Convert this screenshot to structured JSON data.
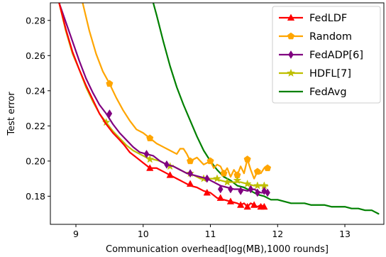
{
  "chart_data": {
    "type": "line",
    "title": "",
    "xlabel": "Communication overhead[log(MB),1000 rounds]",
    "ylabel": "Test error",
    "xlim": [
      8.62,
      13.58
    ],
    "ylim": [
      0.164,
      0.29
    ],
    "xticks": [
      9,
      10,
      11,
      12,
      13
    ],
    "yticks": [
      0.18,
      0.2,
      0.22,
      0.24,
      0.26,
      0.28
    ],
    "xtick_labels": [
      "9",
      "10",
      "11",
      "12",
      "13"
    ],
    "ytick_labels": [
      "0.18",
      "0.20",
      "0.22",
      "0.24",
      "0.26",
      "0.28"
    ],
    "grid": false,
    "legend_position": "top-right",
    "series": [
      {
        "name": "FedLDF",
        "color": "#ff0000",
        "marker": "triangle",
        "x": [
          8.75,
          8.85,
          8.95,
          9.05,
          9.15,
          9.25,
          9.35,
          9.45,
          9.55,
          9.65,
          9.72,
          9.8,
          9.9,
          10.0,
          10.1,
          10.2,
          10.3,
          10.4,
          10.5,
          10.6,
          10.7,
          10.8,
          10.9,
          11.0,
          11.1,
          11.2,
          11.3,
          11.4,
          11.45,
          11.5,
          11.55,
          11.6,
          11.65,
          11.7,
          11.75,
          11.8
        ],
        "y": [
          0.29,
          0.275,
          0.262,
          0.252,
          0.243,
          0.235,
          0.227,
          0.221,
          0.216,
          0.212,
          0.209,
          0.205,
          0.202,
          0.199,
          0.196,
          0.196,
          0.194,
          0.192,
          0.19,
          0.188,
          0.186,
          0.185,
          0.183,
          0.182,
          0.179,
          0.178,
          0.177,
          0.176,
          0.175,
          0.176,
          0.174,
          0.176,
          0.175,
          0.174,
          0.175,
          0.174
        ],
        "markers_x": [
          10.1,
          10.4,
          10.7,
          10.95,
          11.15,
          11.3,
          11.45,
          11.55,
          11.65,
          11.75,
          11.8
        ],
        "markers_y": [
          0.196,
          0.192,
          0.187,
          0.182,
          0.179,
          0.177,
          0.175,
          0.174,
          0.175,
          0.174,
          0.174
        ]
      },
      {
        "name": "Random",
        "color": "#ffa500",
        "marker": "pentagon",
        "x": [
          9.1,
          9.2,
          9.3,
          9.4,
          9.5,
          9.6,
          9.7,
          9.8,
          9.9,
          10.0,
          10.1,
          10.2,
          10.3,
          10.4,
          10.5,
          10.55,
          10.6,
          10.65,
          10.7,
          10.8,
          10.9,
          11.0,
          11.05,
          11.1,
          11.15,
          11.2,
          11.25,
          11.3,
          11.35,
          11.4,
          11.45,
          11.5,
          11.55,
          11.6,
          11.65,
          11.7,
          11.75,
          11.8,
          11.85
        ],
        "y": [
          0.29,
          0.274,
          0.261,
          0.251,
          0.244,
          0.236,
          0.229,
          0.223,
          0.218,
          0.216,
          0.213,
          0.21,
          0.208,
          0.206,
          0.204,
          0.207,
          0.207,
          0.204,
          0.2,
          0.202,
          0.198,
          0.2,
          0.196,
          0.198,
          0.197,
          0.193,
          0.196,
          0.191,
          0.195,
          0.192,
          0.197,
          0.193,
          0.201,
          0.195,
          0.19,
          0.194,
          0.193,
          0.196,
          0.196
        ],
        "markers_x": [
          9.5,
          10.1,
          10.7,
          11.0,
          11.2,
          11.4,
          11.55,
          11.7,
          11.85
        ],
        "markers_y": [
          0.244,
          0.213,
          0.2,
          0.2,
          0.193,
          0.192,
          0.201,
          0.194,
          0.196
        ]
      },
      {
        "name": "FedADP[6]",
        "color": "#800080",
        "marker": "diamond",
        "x": [
          8.75,
          8.85,
          8.95,
          9.05,
          9.15,
          9.25,
          9.35,
          9.45,
          9.55,
          9.65,
          9.75,
          9.85,
          9.95,
          10.05,
          10.15,
          10.25,
          10.35,
          10.45,
          10.55,
          10.65,
          10.75,
          10.85,
          10.95,
          11.05,
          11.15,
          11.25,
          11.35,
          11.45,
          11.55,
          11.65,
          11.75,
          11.85
        ],
        "y": [
          0.29,
          0.279,
          0.268,
          0.257,
          0.247,
          0.239,
          0.232,
          0.227,
          0.221,
          0.216,
          0.212,
          0.208,
          0.205,
          0.204,
          0.203,
          0.2,
          0.198,
          0.197,
          0.195,
          0.193,
          0.192,
          0.191,
          0.19,
          0.188,
          0.186,
          0.185,
          0.184,
          0.184,
          0.183,
          0.184,
          0.182,
          0.182
        ],
        "markers_x": [
          9.5,
          10.05,
          10.35,
          10.7,
          10.95,
          11.15,
          11.3,
          11.45,
          11.6,
          11.7,
          11.8,
          11.85
        ],
        "markers_y": [
          0.227,
          0.204,
          0.198,
          0.193,
          0.19,
          0.184,
          0.184,
          0.183,
          0.184,
          0.182,
          0.183,
          0.182
        ]
      },
      {
        "name": "HDFL[7]",
        "color": "#bfbf00",
        "marker": "star",
        "x": [
          8.75,
          8.85,
          8.95,
          9.05,
          9.15,
          9.25,
          9.35,
          9.45,
          9.55,
          9.65,
          9.75,
          9.85,
          9.95,
          10.05,
          10.15,
          10.25,
          10.35,
          10.45,
          10.55,
          10.65,
          10.75,
          10.85,
          10.95,
          11.05,
          11.15,
          11.25,
          11.35,
          11.45,
          11.55,
          11.65,
          11.75,
          11.85
        ],
        "y": [
          0.29,
          0.274,
          0.261,
          0.252,
          0.242,
          0.234,
          0.227,
          0.222,
          0.217,
          0.213,
          0.209,
          0.206,
          0.204,
          0.202,
          0.201,
          0.2,
          0.198,
          0.197,
          0.195,
          0.193,
          0.192,
          0.19,
          0.19,
          0.19,
          0.189,
          0.188,
          0.188,
          0.188,
          0.187,
          0.186,
          0.186,
          0.186
        ],
        "markers_x": [
          9.45,
          10.1,
          10.4,
          10.7,
          10.9,
          11.1,
          11.25,
          11.4,
          11.55,
          11.7,
          11.8
        ],
        "markers_y": [
          0.222,
          0.201,
          0.197,
          0.193,
          0.19,
          0.19,
          0.188,
          0.189,
          0.187,
          0.186,
          0.186
        ]
      },
      {
        "name": "FedAvg",
        "color": "#008000",
        "marker": "none",
        "x": [
          10.15,
          10.2,
          10.3,
          10.4,
          10.5,
          10.6,
          10.7,
          10.8,
          10.9,
          11.0,
          11.1,
          11.2,
          11.3,
          11.4,
          11.5,
          11.6,
          11.7,
          11.8,
          11.9,
          12.0,
          12.1,
          12.2,
          12.3,
          12.4,
          12.5,
          12.6,
          12.7,
          12.8,
          12.9,
          13.0,
          13.1,
          13.2,
          13.3,
          13.4,
          13.45,
          13.5
        ],
        "y": [
          0.29,
          0.283,
          0.268,
          0.254,
          0.242,
          0.232,
          0.223,
          0.214,
          0.206,
          0.2,
          0.195,
          0.191,
          0.189,
          0.186,
          0.185,
          0.183,
          0.181,
          0.18,
          0.178,
          0.178,
          0.177,
          0.176,
          0.176,
          0.176,
          0.175,
          0.175,
          0.175,
          0.174,
          0.174,
          0.174,
          0.173,
          0.173,
          0.172,
          0.172,
          0.171,
          0.17
        ]
      }
    ]
  }
}
